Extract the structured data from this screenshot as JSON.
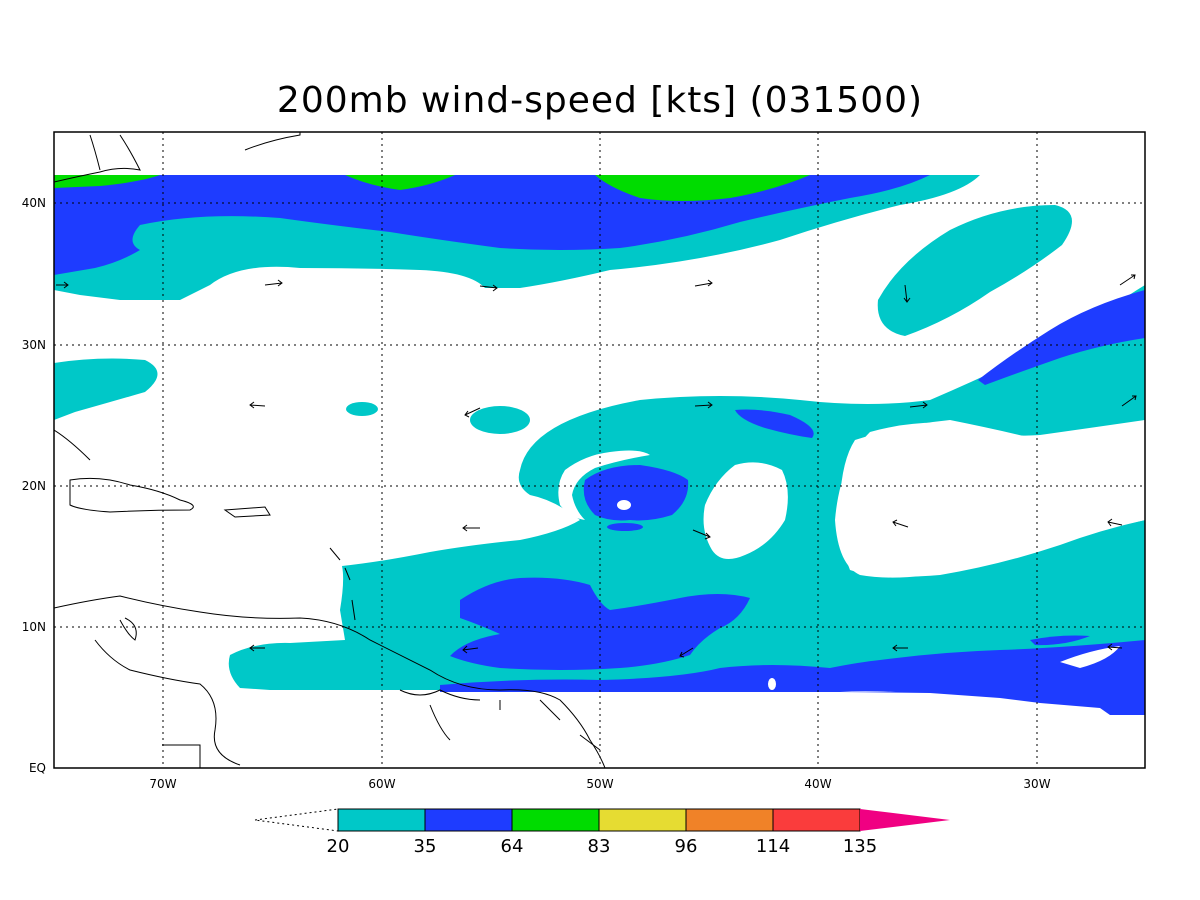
{
  "title": "200mb wind-speed [kts] (031500)",
  "map": {
    "lon_range": [
      -75,
      -25
    ],
    "lat_range": [
      0,
      45
    ],
    "lon_ticks": [
      {
        "value": -70,
        "label": "70W"
      },
      {
        "value": -60,
        "label": "60W"
      },
      {
        "value": -50,
        "label": "50W"
      },
      {
        "value": -40,
        "label": "40W"
      },
      {
        "value": -30,
        "label": "30W"
      }
    ],
    "lat_ticks": [
      {
        "value": 0,
        "label": "EQ"
      },
      {
        "value": 10,
        "label": "10N"
      },
      {
        "value": 20,
        "label": "20N"
      },
      {
        "value": 30,
        "label": "30N"
      },
      {
        "value": 40,
        "label": "40N"
      }
    ],
    "grid": "dotted"
  },
  "colorbar": {
    "levels": [
      "20",
      "35",
      "64",
      "83",
      "96",
      "114",
      "135"
    ],
    "colors": [
      "#00c8c8",
      "#1e3cff",
      "#00dc00",
      "#e6dc32",
      "#f08228",
      "#fa3c3c",
      "#f00082"
    ],
    "below_color": "#ffffff"
  }
}
